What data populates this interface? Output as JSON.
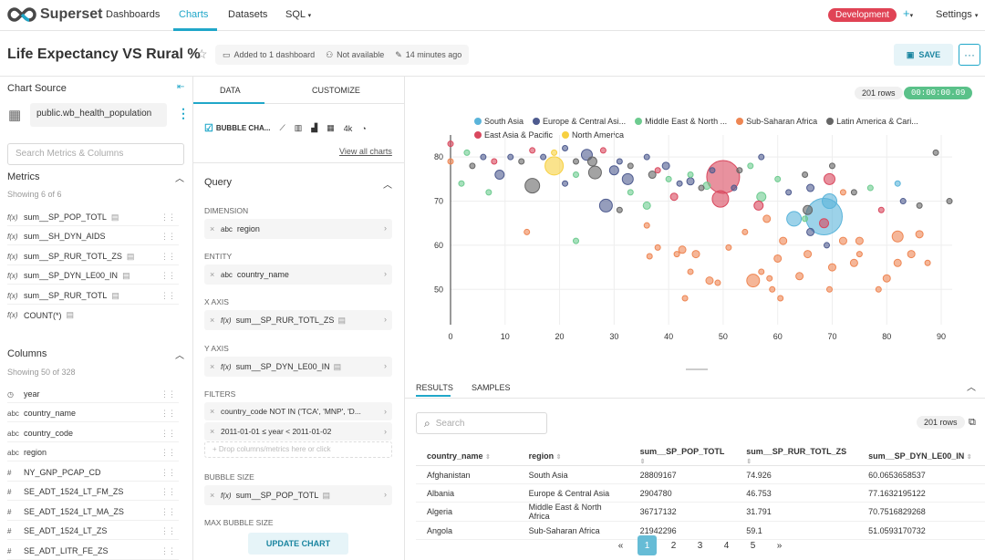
{
  "nav": {
    "brand": "Superset",
    "items": [
      "Dashboards",
      "Charts",
      "Datasets",
      "SQL"
    ],
    "env": "Development",
    "settings": "Settings"
  },
  "header": {
    "title": "Life Expectancy VS Rural %",
    "dashboards": "Added to 1 dashboard",
    "owner": "Not available",
    "modified": "14 minutes ago",
    "save": "SAVE"
  },
  "left": {
    "chart_source": "Chart Source",
    "dataset": "public.wb_health_population",
    "search_placeholder": "Search Metrics & Columns",
    "metrics_title": "Metrics",
    "metrics_sub": "Showing 6 of 6",
    "metrics": [
      "sum__SP_POP_TOTL",
      "sum__SH_DYN_AIDS",
      "sum__SP_RUR_TOTL_ZS",
      "sum__SP_DYN_LE00_IN",
      "sum__SP_RUR_TOTL",
      "COUNT(*)"
    ],
    "columns_title": "Columns",
    "columns_sub": "Showing 50 of 328",
    "columns": [
      {
        "icon": "clock-icon",
        "name": "year"
      },
      {
        "icon": "abc",
        "name": "country_name"
      },
      {
        "icon": "abc",
        "name": "country_code"
      },
      {
        "icon": "abc",
        "name": "region"
      },
      {
        "icon": "#",
        "name": "NY_GNP_PCAP_CD"
      },
      {
        "icon": "#",
        "name": "SE_ADT_1524_LT_FM_ZS"
      },
      {
        "icon": "#",
        "name": "SE_ADT_1524_LT_MA_ZS"
      },
      {
        "icon": "#",
        "name": "SE_ADT_1524_LT_ZS"
      },
      {
        "icon": "#",
        "name": "SE_ADT_LITR_FE_ZS"
      }
    ]
  },
  "mid": {
    "tab_data": "DATA",
    "tab_customize": "CUSTOMIZE",
    "viz_type": "BUBBLE CHA...",
    "viz_4k": "4k",
    "view_all": "View all charts",
    "query_title": "Query",
    "dimension_label": "DIMENSION",
    "dimension": "region",
    "entity_label": "ENTITY",
    "entity": "country_name",
    "x_label": "X AXIS",
    "x_value": "sum__SP_RUR_TOTL_ZS",
    "y_label": "Y AXIS",
    "y_value": "sum__SP_DYN_LE00_IN",
    "filters_label": "FILTERS",
    "filter1": "country_code NOT IN ('TCA', 'MNP', 'D...",
    "filter2": "2011-01-01 ≤ year < 2011-01-02",
    "filter_drop": "Drop columns/metrics here or click",
    "size_label": "BUBBLE SIZE",
    "size_value": "sum__SP_POP_TOTL",
    "max_size_label": "MAX BUBBLE SIZE",
    "update": "UPDATE CHART",
    "abc": "abc",
    "fx": "f(x)"
  },
  "main": {
    "rows": "201 rows",
    "timer": "00:00:00.09",
    "results_tab": "RESULTS",
    "samples_tab": "SAMPLES",
    "search_placeholder": "Search",
    "rows2": "201 rows",
    "table": {
      "headers": [
        "country_name",
        "region",
        "sum__SP_POP_TOTL",
        "sum__SP_RUR_TOTL_ZS",
        "sum__SP_DYN_LE00_IN"
      ],
      "rows": [
        [
          "Afghanistan",
          "South Asia",
          "28809167",
          "74.926",
          "60.0653658537"
        ],
        [
          "Albania",
          "Europe & Central Asia",
          "2904780",
          "46.753",
          "77.1632195122"
        ],
        [
          "Algeria",
          "Middle East & North Africa",
          "36717132",
          "31.791",
          "70.7516829268"
        ],
        [
          "Angola",
          "Sub-Saharan Africa",
          "21942296",
          "59.1",
          "51.0593170732"
        ]
      ]
    },
    "pages": [
      "«",
      "1",
      "2",
      "3",
      "4",
      "5",
      "»"
    ]
  },
  "chart_data": {
    "type": "scatter",
    "xlim": [
      0,
      92
    ],
    "ylim": [
      42,
      85
    ],
    "xticks": [
      0,
      10,
      20,
      30,
      40,
      50,
      60,
      70,
      80,
      90
    ],
    "yticks": [
      50,
      60,
      70,
      80
    ],
    "legend": [
      {
        "name": "South Asia",
        "color": "#5ab4da"
      },
      {
        "name": "Europe & Central Asi...",
        "color": "#4e5b8f"
      },
      {
        "name": "Middle East & North ...",
        "color": "#6dcb8f"
      },
      {
        "name": "Sub-Saharan Africa",
        "color": "#ee8653"
      },
      {
        "name": "Latin America & Cari...",
        "color": "#666666"
      },
      {
        "name": "East Asia & Pacific",
        "color": "#d9485e"
      },
      {
        "name": "North America",
        "color": "#f7d040"
      }
    ],
    "points": [
      {
        "x": 50,
        "y": 75.5,
        "r": 18,
        "c": 5
      },
      {
        "x": 68.5,
        "y": 66.5,
        "r": 20,
        "c": 0
      },
      {
        "x": 19,
        "y": 78,
        "r": 10,
        "c": 6
      },
      {
        "x": 55.5,
        "y": 52,
        "r": 7,
        "c": 3
      },
      {
        "x": 15,
        "y": 73.5,
        "r": 8,
        "c": 4
      },
      {
        "x": 26.5,
        "y": 76.5,
        "r": 7,
        "c": 4
      },
      {
        "x": 9,
        "y": 76,
        "r": 5,
        "c": 1
      },
      {
        "x": 32.5,
        "y": 75,
        "r": 6,
        "c": 1
      },
      {
        "x": 25,
        "y": 80.5,
        "r": 6,
        "c": 1
      },
      {
        "x": 26,
        "y": 79,
        "r": 5,
        "c": 4
      },
      {
        "x": 30,
        "y": 77,
        "r": 5,
        "c": 1
      },
      {
        "x": 28.5,
        "y": 69,
        "r": 7,
        "c": 1
      },
      {
        "x": 49.5,
        "y": 70.5,
        "r": 9,
        "c": 5
      },
      {
        "x": 57,
        "y": 71,
        "r": 5,
        "c": 2
      },
      {
        "x": 69.5,
        "y": 75,
        "r": 6,
        "c": 5
      },
      {
        "x": 63,
        "y": 66,
        "r": 8,
        "c": 0
      },
      {
        "x": 69.5,
        "y": 70,
        "r": 8,
        "c": 0
      },
      {
        "x": 66,
        "y": 73,
        "r": 4,
        "c": 1
      },
      {
        "x": 65.5,
        "y": 68,
        "r": 5,
        "c": 4
      },
      {
        "x": 68.5,
        "y": 65,
        "r": 5,
        "c": 5
      },
      {
        "x": 56.5,
        "y": 69,
        "r": 5,
        "c": 5
      },
      {
        "x": 41,
        "y": 71,
        "r": 4,
        "c": 5
      },
      {
        "x": 36,
        "y": 69,
        "r": 4,
        "c": 2
      },
      {
        "x": 37,
        "y": 76,
        "r": 4,
        "c": 4
      },
      {
        "x": 39.5,
        "y": 78,
        "r": 4,
        "c": 1
      },
      {
        "x": 44,
        "y": 74.5,
        "r": 4,
        "c": 1
      },
      {
        "x": 47,
        "y": 73.5,
        "r": 4,
        "c": 2
      },
      {
        "x": 58,
        "y": 66,
        "r": 4,
        "c": 3
      },
      {
        "x": 61,
        "y": 61,
        "r": 4,
        "c": 3
      },
      {
        "x": 66,
        "y": 63,
        "r": 4,
        "c": 1
      },
      {
        "x": 72,
        "y": 61,
        "r": 4,
        "c": 3
      },
      {
        "x": 75,
        "y": 61,
        "r": 4,
        "c": 3
      },
      {
        "x": 82,
        "y": 62,
        "r": 6,
        "c": 3
      },
      {
        "x": 86,
        "y": 62.5,
        "r": 4,
        "c": 3
      },
      {
        "x": 84.5,
        "y": 58,
        "r": 4,
        "c": 3
      },
      {
        "x": 82,
        "y": 56,
        "r": 4,
        "c": 3
      },
      {
        "x": 80,
        "y": 52.5,
        "r": 4,
        "c": 3
      },
      {
        "x": 74,
        "y": 56,
        "r": 4,
        "c": 3
      },
      {
        "x": 70,
        "y": 55,
        "r": 4,
        "c": 3
      },
      {
        "x": 65.5,
        "y": 58,
        "r": 4,
        "c": 3
      },
      {
        "x": 64,
        "y": 53,
        "r": 4,
        "c": 3
      },
      {
        "x": 60,
        "y": 57,
        "r": 4,
        "c": 3
      },
      {
        "x": 57,
        "y": 54,
        "r": 3,
        "c": 3
      },
      {
        "x": 59,
        "y": 50,
        "r": 3,
        "c": 3
      },
      {
        "x": 60.5,
        "y": 48,
        "r": 3,
        "c": 3
      },
      {
        "x": 69.5,
        "y": 50,
        "r": 3,
        "c": 3
      },
      {
        "x": 78.5,
        "y": 50,
        "r": 3,
        "c": 3
      },
      {
        "x": 51,
        "y": 59.5,
        "r": 3,
        "c": 3
      },
      {
        "x": 45,
        "y": 58,
        "r": 4,
        "c": 3
      },
      {
        "x": 47.5,
        "y": 52,
        "r": 4,
        "c": 3
      },
      {
        "x": 42.5,
        "y": 59,
        "r": 4,
        "c": 3
      },
      {
        "x": 49,
        "y": 51.5,
        "r": 3,
        "c": 3
      },
      {
        "x": 38,
        "y": 59.5,
        "r": 3,
        "c": 3
      },
      {
        "x": 41.5,
        "y": 58,
        "r": 3,
        "c": 3
      },
      {
        "x": 36.5,
        "y": 57.5,
        "r": 3,
        "c": 3
      },
      {
        "x": 44,
        "y": 54,
        "r": 3,
        "c": 3
      },
      {
        "x": 36,
        "y": 64.5,
        "r": 3,
        "c": 3
      },
      {
        "x": 43,
        "y": 48,
        "r": 3,
        "c": 3
      },
      {
        "x": 58.5,
        "y": 52.5,
        "r": 3,
        "c": 3
      },
      {
        "x": 54,
        "y": 63,
        "r": 3,
        "c": 3
      },
      {
        "x": 75,
        "y": 58,
        "r": 3,
        "c": 3
      },
      {
        "x": 87.5,
        "y": 56,
        "r": 3,
        "c": 3
      },
      {
        "x": 72,
        "y": 72,
        "r": 3,
        "c": 3
      },
      {
        "x": 65,
        "y": 66,
        "r": 3,
        "c": 2
      },
      {
        "x": 69,
        "y": 60,
        "r": 3,
        "c": 1
      },
      {
        "x": 60,
        "y": 75,
        "r": 3,
        "c": 2
      },
      {
        "x": 65,
        "y": 76,
        "r": 3,
        "c": 4
      },
      {
        "x": 70,
        "y": 78,
        "r": 3,
        "c": 4
      },
      {
        "x": 74,
        "y": 72,
        "r": 3,
        "c": 4
      },
      {
        "x": 77,
        "y": 73,
        "r": 3,
        "c": 2
      },
      {
        "x": 79,
        "y": 68,
        "r": 3,
        "c": 5
      },
      {
        "x": 83,
        "y": 70,
        "r": 3,
        "c": 1
      },
      {
        "x": 82,
        "y": 74,
        "r": 3,
        "c": 0
      },
      {
        "x": 86,
        "y": 69,
        "r": 3,
        "c": 4
      },
      {
        "x": 91.5,
        "y": 70,
        "r": 3,
        "c": 4
      },
      {
        "x": 89,
        "y": 81,
        "r": 3,
        "c": 4
      },
      {
        "x": 3,
        "y": 81,
        "r": 3,
        "c": 2
      },
      {
        "x": 4,
        "y": 78,
        "r": 3,
        "c": 4
      },
      {
        "x": 6,
        "y": 80,
        "r": 3,
        "c": 1
      },
      {
        "x": 8,
        "y": 79,
        "r": 3,
        "c": 5
      },
      {
        "x": 11,
        "y": 80,
        "r": 3,
        "c": 1
      },
      {
        "x": 13,
        "y": 79,
        "r": 3,
        "c": 4
      },
      {
        "x": 15,
        "y": 81.5,
        "r": 3,
        "c": 5
      },
      {
        "x": 17,
        "y": 80,
        "r": 3,
        "c": 1
      },
      {
        "x": 19,
        "y": 81,
        "r": 3,
        "c": 6
      },
      {
        "x": 21,
        "y": 82,
        "r": 3,
        "c": 1
      },
      {
        "x": 23,
        "y": 79,
        "r": 3,
        "c": 4
      },
      {
        "x": 28,
        "y": 81.5,
        "r": 3,
        "c": 5
      },
      {
        "x": 31,
        "y": 79,
        "r": 3,
        "c": 1
      },
      {
        "x": 33,
        "y": 78,
        "r": 3,
        "c": 4
      },
      {
        "x": 36,
        "y": 80,
        "r": 3,
        "c": 1
      },
      {
        "x": 38,
        "y": 77,
        "r": 3,
        "c": 5
      },
      {
        "x": 40,
        "y": 75,
        "r": 3,
        "c": 2
      },
      {
        "x": 42,
        "y": 74,
        "r": 3,
        "c": 1
      },
      {
        "x": 46,
        "y": 73,
        "r": 3,
        "c": 4
      },
      {
        "x": 48,
        "y": 77,
        "r": 3,
        "c": 1
      },
      {
        "x": 52,
        "y": 73,
        "r": 3,
        "c": 1
      },
      {
        "x": 53,
        "y": 77,
        "r": 3,
        "c": 4
      },
      {
        "x": 55,
        "y": 78,
        "r": 3,
        "c": 2
      },
      {
        "x": 57,
        "y": 80,
        "r": 3,
        "c": 1
      },
      {
        "x": 23,
        "y": 76,
        "r": 3,
        "c": 2
      },
      {
        "x": 21,
        "y": 74,
        "r": 3,
        "c": 1
      },
      {
        "x": 33,
        "y": 72,
        "r": 3,
        "c": 2
      },
      {
        "x": 31,
        "y": 68,
        "r": 3,
        "c": 4
      },
      {
        "x": 7,
        "y": 72,
        "r": 3,
        "c": 2
      },
      {
        "x": 0,
        "y": 83,
        "r": 3,
        "c": 5
      },
      {
        "x": 0,
        "y": 79,
        "r": 3,
        "c": 3
      },
      {
        "x": 14,
        "y": 63,
        "r": 3,
        "c": 3
      },
      {
        "x": 23,
        "y": 61,
        "r": 3,
        "c": 2
      },
      {
        "x": 2,
        "y": 74,
        "r": 3,
        "c": 2
      },
      {
        "x": 44,
        "y": 76,
        "r": 3,
        "c": 2
      },
      {
        "x": 62,
        "y": 72,
        "r": 3,
        "c": 1
      }
    ]
  }
}
